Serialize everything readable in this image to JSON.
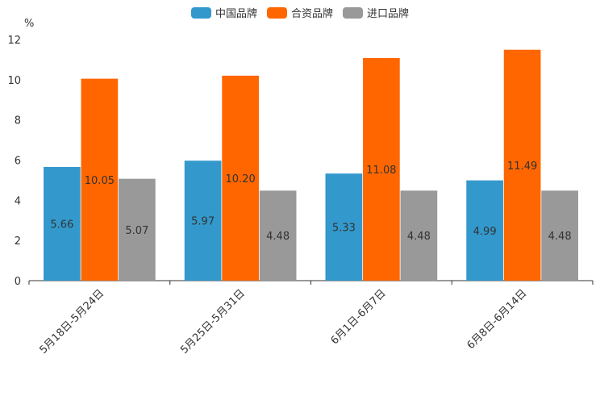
{
  "chart_data": {
    "type": "bar",
    "title": "",
    "xlabel": "",
    "ylabel": "%",
    "ylim": [
      0,
      12
    ],
    "yticks": [
      0,
      2,
      4,
      6,
      8,
      10,
      12
    ],
    "categories": [
      "5月18日-5月24日",
      "5月25日-5月31日",
      "6月1日-6月7日",
      "6月8日-6月14日"
    ],
    "series": [
      {
        "name": "中国品牌",
        "color": "#3399cc",
        "values": [
          5.66,
          5.97,
          5.33,
          4.99
        ],
        "labels": [
          "5.66",
          "5.97",
          "5.33",
          "4.99"
        ]
      },
      {
        "name": "合资品牌",
        "color": "#ff6600",
        "values": [
          10.05,
          10.2,
          11.08,
          11.49
        ],
        "labels": [
          "10.05",
          "10.20",
          "11.08",
          "11.49"
        ]
      },
      {
        "name": "进口品牌",
        "color": "#999999",
        "values": [
          5.07,
          4.48,
          4.48,
          4.48
        ],
        "labels": [
          "5.07",
          "4.48",
          "4.48",
          "4.48"
        ]
      }
    ],
    "legend_position": "top-center",
    "grid": false
  }
}
